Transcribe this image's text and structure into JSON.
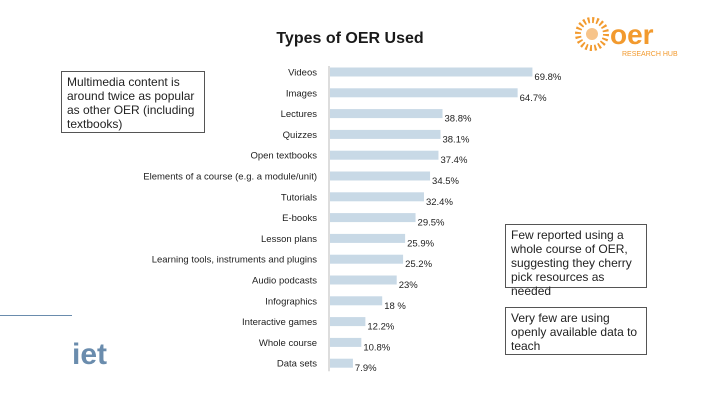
{
  "page": {
    "notes": {
      "left": "Multimedia content is around twice as popular as other OER (including textbooks)",
      "right_top": "Few reported using a whole course of OER, suggesting they cherry pick resources as needed",
      "right_bottom": "Very few are using openly available data to teach"
    },
    "logos": {
      "oer": "oer",
      "oer_subtitle": "RESEARCH HUB",
      "iet": "iet"
    }
  },
  "colors": {
    "bar": "#c8d9e6",
    "oer_orange": "#f29a2e",
    "iet_blue": "#6a8cad"
  },
  "chart_data": {
    "type": "bar",
    "orientation": "horizontal",
    "title": "Types of OER Used",
    "categories": [
      "Videos",
      "Images",
      "Lectures",
      "Quizzes",
      "Open textbooks",
      "Elements of a course (e.g. a module/unit)",
      "Tutorials",
      "E-books",
      "Lesson plans",
      "Learning tools, instruments and plugins",
      "Audio podcasts",
      "Infographics",
      "Interactive games",
      "Whole course",
      "Data sets"
    ],
    "values": [
      69.8,
      64.7,
      38.8,
      38.1,
      37.4,
      34.5,
      32.4,
      29.5,
      25.9,
      25.2,
      23,
      18,
      12.2,
      10.8,
      7.9
    ],
    "data_labels": [
      "69.8%",
      "64.7%",
      "38.8%",
      "38.1%",
      "37.4%",
      "34.5%",
      "32.4%",
      "29.5%",
      "25.9%",
      "25.2%",
      "23%",
      "18 %",
      "12.2%",
      "10.8%",
      "7.9%"
    ],
    "xlabel": "",
    "ylabel": "",
    "xlim": [
      0,
      70
    ],
    "grid": false
  }
}
